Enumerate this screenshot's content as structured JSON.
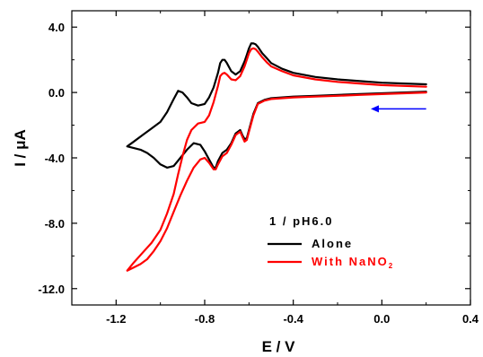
{
  "chart_data": {
    "type": "line",
    "xlabel": "E / V",
    "ylabel": "I / μA",
    "xlim": [
      -1.4,
      0.4
    ],
    "ylim": [
      -13.0,
      5.0
    ],
    "x_ticks": [
      -1.2,
      -0.8,
      -0.4,
      0.0,
      0.4
    ],
    "x_tick_labels": [
      "-1.2",
      "-0.8",
      "-0.4",
      "0.0",
      "0.4"
    ],
    "y_ticks": [
      -12.0,
      -8.0,
      -4.0,
      0.0,
      4.0
    ],
    "y_tick_labels": [
      "-12.0",
      "-8.0",
      "-4.0",
      "0.0",
      "4.0"
    ],
    "grid": false,
    "legend": {
      "placement": "bottom-right",
      "title": "1 / pH6.0",
      "entries": [
        {
          "label_main": "With NaNO",
          "label_sub": "2"
        }
      ]
    },
    "scan_direction_arrow": {
      "color": "#0000ff",
      "from": [
        0.2,
        -1.0
      ],
      "to": [
        -0.05,
        -1.0
      ]
    },
    "series": [
      {
        "name": "Alone",
        "color": "#000000",
        "x": [
          0.2,
          0.1,
          0.0,
          -0.1,
          -0.2,
          -0.3,
          -0.4,
          -0.45,
          -0.5,
          -0.53,
          -0.56,
          -0.58,
          -0.6,
          -0.61,
          -0.62,
          -0.63,
          -0.64,
          -0.66,
          -0.68,
          -0.7,
          -0.72,
          -0.74,
          -0.75,
          -0.76,
          -0.78,
          -0.8,
          -0.82,
          -0.85,
          -0.88,
          -0.91,
          -0.94,
          -0.97,
          -1.0,
          -1.03,
          -1.06,
          -1.09,
          -1.12,
          -1.15,
          -1.12,
          -1.08,
          -1.04,
          -1.0,
          -0.97,
          -0.94,
          -0.92,
          -0.9,
          -0.88,
          -0.86,
          -0.83,
          -0.8,
          -0.78,
          -0.76,
          -0.74,
          -0.73,
          -0.72,
          -0.71,
          -0.7,
          -0.68,
          -0.66,
          -0.64,
          -0.62,
          -0.61,
          -0.6,
          -0.59,
          -0.58,
          -0.57,
          -0.56,
          -0.54,
          -0.52,
          -0.5,
          -0.45,
          -0.4,
          -0.3,
          -0.2,
          -0.1,
          0.0,
          0.1,
          0.2
        ],
        "y": [
          0.05,
          0.0,
          -0.05,
          -0.1,
          -0.15,
          -0.2,
          -0.25,
          -0.3,
          -0.35,
          -0.45,
          -0.65,
          -1.3,
          -2.3,
          -2.8,
          -2.85,
          -2.6,
          -2.3,
          -2.5,
          -3.1,
          -3.5,
          -3.7,
          -4.2,
          -4.6,
          -4.6,
          -4.1,
          -3.6,
          -3.2,
          -3.1,
          -3.5,
          -4.0,
          -4.5,
          -4.6,
          -4.4,
          -4.0,
          -3.7,
          -3.5,
          -3.4,
          -3.3,
          -3.0,
          -2.6,
          -2.2,
          -1.8,
          -1.2,
          -0.4,
          0.1,
          0.0,
          -0.3,
          -0.65,
          -0.8,
          -0.7,
          -0.3,
          0.3,
          1.2,
          1.8,
          2.0,
          2.0,
          1.8,
          1.3,
          1.1,
          1.3,
          1.9,
          2.3,
          2.7,
          3.0,
          3.0,
          2.95,
          2.8,
          2.4,
          2.1,
          1.8,
          1.45,
          1.2,
          0.95,
          0.8,
          0.7,
          0.6,
          0.55,
          0.5
        ]
      },
      {
        "color": "#ff0000",
        "x": [
          0.2,
          0.1,
          0.0,
          -0.1,
          -0.2,
          -0.3,
          -0.4,
          -0.45,
          -0.5,
          -0.53,
          -0.56,
          -0.58,
          -0.6,
          -0.61,
          -0.62,
          -0.63,
          -0.64,
          -0.66,
          -0.68,
          -0.7,
          -0.72,
          -0.74,
          -0.75,
          -0.76,
          -0.78,
          -0.8,
          -0.82,
          -0.85,
          -0.88,
          -0.91,
          -0.94,
          -0.97,
          -1.0,
          -1.03,
          -1.06,
          -1.09,
          -1.12,
          -1.15,
          -1.12,
          -1.08,
          -1.04,
          -1.0,
          -0.97,
          -0.94,
          -0.92,
          -0.9,
          -0.88,
          -0.86,
          -0.83,
          -0.8,
          -0.78,
          -0.76,
          -0.74,
          -0.73,
          -0.72,
          -0.71,
          -0.7,
          -0.68,
          -0.66,
          -0.64,
          -0.62,
          -0.61,
          -0.6,
          -0.59,
          -0.58,
          -0.57,
          -0.56,
          -0.54,
          -0.52,
          -0.5,
          -0.45,
          -0.4,
          -0.3,
          -0.2,
          -0.1,
          0.0,
          0.1,
          0.2
        ],
        "y": [
          0.0,
          -0.05,
          -0.1,
          -0.15,
          -0.2,
          -0.25,
          -0.3,
          -0.35,
          -0.4,
          -0.5,
          -0.7,
          -1.4,
          -2.4,
          -2.9,
          -3.0,
          -2.7,
          -2.4,
          -2.6,
          -3.2,
          -3.7,
          -3.9,
          -4.4,
          -4.7,
          -4.7,
          -4.3,
          -4.0,
          -4.1,
          -4.6,
          -5.4,
          -6.3,
          -7.3,
          -8.3,
          -9.1,
          -9.7,
          -10.2,
          -10.5,
          -10.7,
          -10.9,
          -10.4,
          -9.8,
          -9.2,
          -8.4,
          -7.4,
          -6.2,
          -5.0,
          -3.9,
          -2.9,
          -2.3,
          -1.9,
          -1.8,
          -1.4,
          -0.6,
          0.4,
          1.0,
          1.15,
          1.2,
          1.1,
          0.8,
          0.75,
          1.0,
          1.6,
          2.0,
          2.4,
          2.65,
          2.7,
          2.65,
          2.5,
          2.15,
          1.85,
          1.6,
          1.3,
          1.05,
          0.8,
          0.65,
          0.55,
          0.45,
          0.4,
          0.35
        ]
      }
    ]
  }
}
